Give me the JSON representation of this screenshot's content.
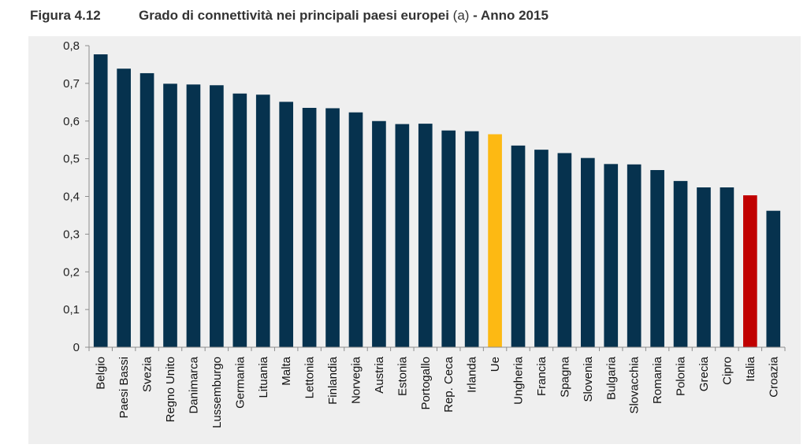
{
  "figure": {
    "number": "Figura 4.12",
    "title": "Grado di connettività nei principali paesi europei",
    "note": "(a)",
    "suffix": "- Anno 2015"
  },
  "colors": {
    "default": "#06324e",
    "ue": "#fdb913",
    "italia": "#c00000",
    "panel_bg": "#efefef",
    "axis": "#8c8c8c"
  },
  "chart_data": {
    "type": "bar",
    "title": "Grado di connettività nei principali paesi europei (a) - Anno 2015",
    "xlabel": "",
    "ylabel": "",
    "ylim": [
      0,
      0.8
    ],
    "yticks": [
      "0",
      "0,1",
      "0,2",
      "0,3",
      "0,4",
      "0,5",
      "0,6",
      "0,7",
      "0,8"
    ],
    "grid": false,
    "categories": [
      "Belgio",
      "Paesi Bassi",
      "Svezia",
      "Regno Unito",
      "Danimarca",
      "Lussemburgo",
      "Germania",
      "Lituania",
      "Malta",
      "Lettonia",
      "Finlandia",
      "Norvegia",
      "Austria",
      "Estonia",
      "Portogallo",
      "Rep. Ceca",
      "Irlanda",
      "Ue",
      "Ungheria",
      "Francia",
      "Spagna",
      "Slovenia",
      "Bulgaria",
      "Slovacchia",
      "Romania",
      "Polonia",
      "Grecia",
      "Cipro",
      "Italia",
      "Croazia"
    ],
    "values": [
      0.777,
      0.739,
      0.727,
      0.699,
      0.697,
      0.695,
      0.673,
      0.67,
      0.651,
      0.635,
      0.634,
      0.623,
      0.6,
      0.592,
      0.593,
      0.575,
      0.573,
      0.565,
      0.535,
      0.524,
      0.515,
      0.502,
      0.486,
      0.485,
      0.47,
      0.441,
      0.424,
      0.424,
      0.403,
      0.362
    ],
    "highlight": {
      "Ue": "#fdb913",
      "Italia": "#c00000"
    }
  }
}
